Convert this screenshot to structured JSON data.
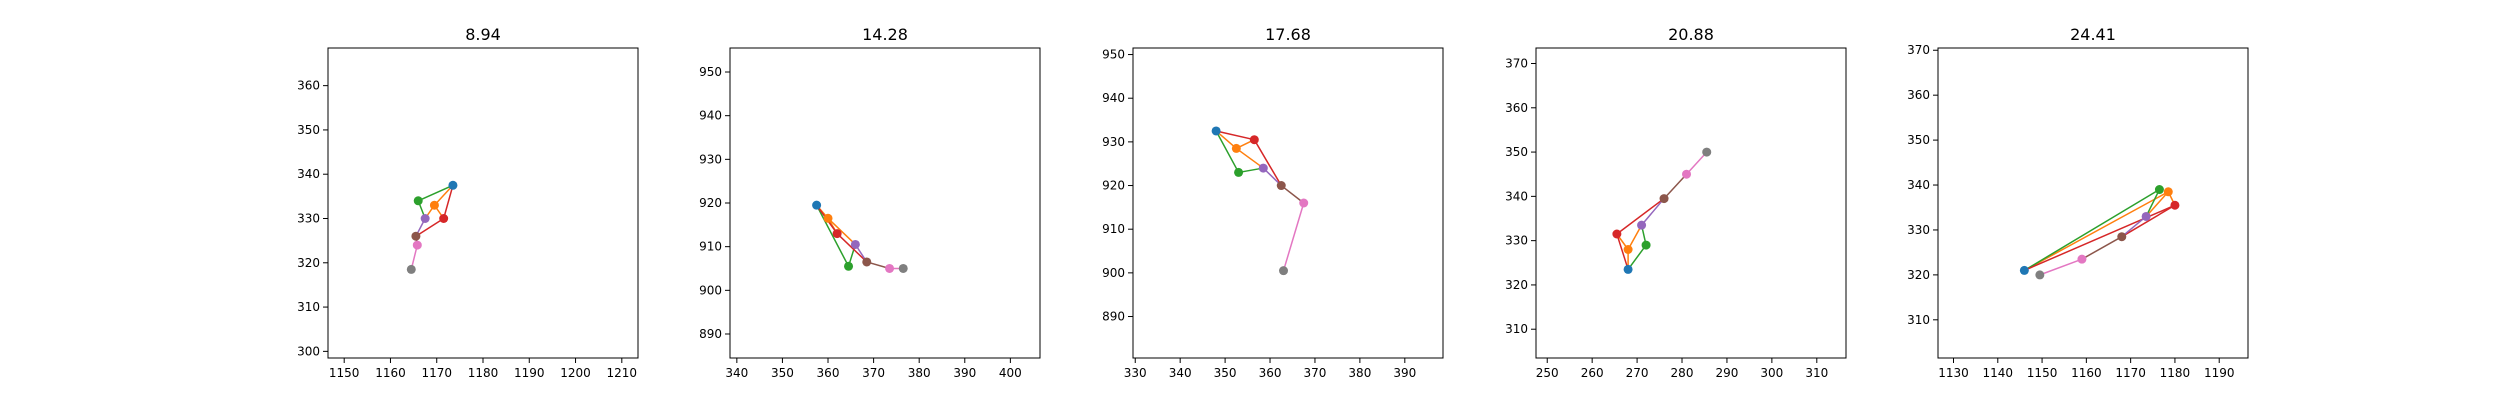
{
  "colors": {
    "c0": "#1f77b4",
    "c1": "#ff7f0e",
    "c2": "#2ca02c",
    "c3": "#d62728",
    "c4": "#9467bd",
    "c5": "#8c564b",
    "c6": "#e377c2",
    "c7": "#7f7f7f"
  },
  "chart_data": [
    {
      "type": "line",
      "title": "8.94",
      "xlim": [
        1146.5,
        1213.5
      ],
      "ylim": [
        298.5,
        368.5
      ],
      "xticks": [
        1150,
        1160,
        1170,
        1180,
        1190,
        1200,
        1210
      ],
      "yticks": [
        300,
        310,
        320,
        330,
        340,
        350,
        360
      ],
      "points": [
        {
          "x": 1173.5,
          "y": 337.5
        },
        {
          "x": 1169.5,
          "y": 333.0
        },
        {
          "x": 1166.0,
          "y": 334.0
        },
        {
          "x": 1171.5,
          "y": 330.0
        },
        {
          "x": 1167.5,
          "y": 330.0
        },
        {
          "x": 1165.5,
          "y": 326.0
        },
        {
          "x": 1165.8,
          "y": 324.0
        },
        {
          "x": 1164.5,
          "y": 318.5
        }
      ],
      "edges": [
        [
          0,
          1,
          1
        ],
        [
          1,
          4,
          1
        ],
        [
          1,
          3,
          1
        ],
        [
          0,
          2,
          2
        ],
        [
          2,
          4,
          2
        ],
        [
          0,
          3,
          3
        ],
        [
          3,
          5,
          3
        ],
        [
          4,
          5,
          4
        ],
        [
          5,
          6,
          5
        ],
        [
          6,
          7,
          6
        ]
      ]
    },
    {
      "type": "line",
      "title": "14.28",
      "xlim": [
        338.5,
        406.5
      ],
      "ylim": [
        884.5,
        955.5
      ],
      "xticks": [
        340,
        350,
        360,
        370,
        380,
        390,
        400
      ],
      "yticks": [
        890,
        900,
        910,
        920,
        930,
        940,
        950
      ],
      "points": [
        {
          "x": 357.5,
          "y": 919.5
        },
        {
          "x": 360.0,
          "y": 916.5
        },
        {
          "x": 364.5,
          "y": 905.5
        },
        {
          "x": 362.0,
          "y": 913.0
        },
        {
          "x": 366.0,
          "y": 910.5
        },
        {
          "x": 368.5,
          "y": 906.5
        },
        {
          "x": 373.5,
          "y": 905.0
        },
        {
          "x": 376.5,
          "y": 905.0
        }
      ],
      "edges": [
        [
          0,
          1,
          1
        ],
        [
          1,
          4,
          1
        ],
        [
          1,
          3,
          1
        ],
        [
          0,
          2,
          2
        ],
        [
          2,
          4,
          2
        ],
        [
          0,
          3,
          3
        ],
        [
          3,
          5,
          3
        ],
        [
          4,
          5,
          4
        ],
        [
          5,
          6,
          5
        ],
        [
          6,
          7,
          6
        ]
      ]
    },
    {
      "type": "line",
      "title": "17.68",
      "xlim": [
        329.5,
        398.5
      ],
      "ylim": [
        880.5,
        951.5
      ],
      "xticks": [
        330,
        340,
        350,
        360,
        370,
        380,
        390
      ],
      "yticks": [
        890,
        900,
        910,
        920,
        930,
        940,
        950
      ],
      "points": [
        {
          "x": 348.0,
          "y": 932.5
        },
        {
          "x": 352.5,
          "y": 928.5
        },
        {
          "x": 353.0,
          "y": 923.0
        },
        {
          "x": 356.5,
          "y": 930.5
        },
        {
          "x": 358.5,
          "y": 924.0
        },
        {
          "x": 362.5,
          "y": 920.0
        },
        {
          "x": 367.5,
          "y": 916.0
        },
        {
          "x": 363.0,
          "y": 900.5
        }
      ],
      "edges": [
        [
          0,
          1,
          1
        ],
        [
          1,
          4,
          1
        ],
        [
          1,
          3,
          1
        ],
        [
          0,
          2,
          2
        ],
        [
          2,
          4,
          2
        ],
        [
          0,
          3,
          3
        ],
        [
          3,
          5,
          3
        ],
        [
          4,
          5,
          4
        ],
        [
          5,
          6,
          5
        ],
        [
          6,
          7,
          6
        ]
      ]
    },
    {
      "type": "line",
      "title": "20.88",
      "xlim": [
        247.5,
        316.5
      ],
      "ylim": [
        303.5,
        373.5
      ],
      "xticks": [
        250,
        260,
        270,
        280,
        290,
        300,
        310
      ],
      "yticks": [
        310,
        320,
        330,
        340,
        350,
        360,
        370
      ],
      "points": [
        {
          "x": 268.0,
          "y": 323.5
        },
        {
          "x": 268.0,
          "y": 328.0
        },
        {
          "x": 272.0,
          "y": 329.0
        },
        {
          "x": 265.5,
          "y": 331.5
        },
        {
          "x": 271.0,
          "y": 333.5
        },
        {
          "x": 276.0,
          "y": 339.5
        },
        {
          "x": 281.0,
          "y": 345.0
        },
        {
          "x": 285.5,
          "y": 350.0
        }
      ],
      "edges": [
        [
          0,
          1,
          1
        ],
        [
          1,
          4,
          1
        ],
        [
          1,
          3,
          1
        ],
        [
          0,
          2,
          2
        ],
        [
          2,
          4,
          2
        ],
        [
          0,
          3,
          3
        ],
        [
          3,
          5,
          3
        ],
        [
          4,
          5,
          4
        ],
        [
          5,
          6,
          5
        ],
        [
          6,
          7,
          6
        ]
      ]
    },
    {
      "type": "line",
      "title": "24.41",
      "xlim": [
        1126.5,
        1196.5
      ],
      "ylim": [
        301.5,
        370.5
      ],
      "xticks": [
        1130,
        1140,
        1150,
        1160,
        1170,
        1180,
        1190
      ],
      "yticks": [
        310,
        320,
        330,
        340,
        350,
        360,
        370
      ],
      "points": [
        {
          "x": 1146.0,
          "y": 321.0
        },
        {
          "x": 1178.5,
          "y": 338.5
        },
        {
          "x": 1176.5,
          "y": 339.0
        },
        {
          "x": 1180.0,
          "y": 335.5
        },
        {
          "x": 1173.5,
          "y": 333.0
        },
        {
          "x": 1168.0,
          "y": 328.5
        },
        {
          "x": 1159.0,
          "y": 323.5
        },
        {
          "x": 1149.5,
          "y": 320.0
        }
      ],
      "edges": [
        [
          0,
          1,
          1
        ],
        [
          1,
          4,
          1
        ],
        [
          1,
          3,
          1
        ],
        [
          0,
          2,
          2
        ],
        [
          2,
          4,
          2
        ],
        [
          0,
          3,
          3
        ],
        [
          3,
          5,
          3
        ],
        [
          4,
          5,
          4
        ],
        [
          5,
          6,
          5
        ],
        [
          6,
          7,
          6
        ]
      ]
    }
  ]
}
